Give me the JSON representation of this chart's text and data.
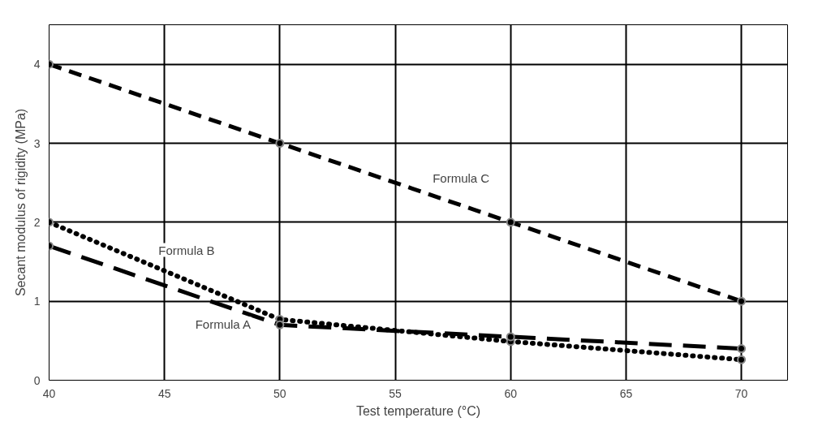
{
  "chart_data": {
    "type": "line",
    "xlabel": "Test temperature (°C)",
    "ylabel": "Secant modulus of rigidity (MPa)",
    "x": [
      40,
      50,
      60,
      70
    ],
    "series": [
      {
        "name": "Formula C",
        "color": "#000000",
        "values": [
          4,
          3,
          2,
          1
        ],
        "line_style": "dashed"
      },
      {
        "name": "Formula B",
        "color": "#000000",
        "values": [
          2.0,
          0.77,
          0.49,
          0.26
        ],
        "line_style": "dotted"
      },
      {
        "name": "Formula A",
        "color": "#000000",
        "values": [
          1.7,
          0.7,
          0.55,
          0.4
        ],
        "line_style": "longdash"
      }
    ],
    "xlim": [
      40,
      72
    ],
    "ylim": [
      0,
      4.5
    ],
    "xticks": [
      40,
      45,
      50,
      55,
      60,
      65,
      70
    ],
    "yticks": [
      0,
      1,
      2,
      3,
      4
    ],
    "grid": true,
    "marker": "circle"
  }
}
